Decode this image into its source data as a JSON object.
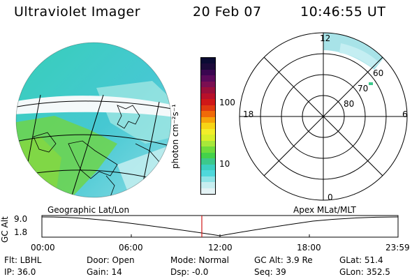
{
  "header": {
    "instrument": "Ultraviolet Imager",
    "date": "20 Feb 07",
    "time": "10:46:55 UT"
  },
  "colorbar": {
    "label": "photon cm⁻²s⁻¹",
    "ticks": [
      "100",
      "10"
    ],
    "colors": [
      "#0b0b33",
      "#1c0a3a",
      "#3a0650",
      "#5a0a5a",
      "#7b0f52",
      "#9a0f3a",
      "#b8102a",
      "#d01818",
      "#e03a10",
      "#f06a08",
      "#f6a40a",
      "#f7d415",
      "#f2ee2a",
      "#d8ef2a",
      "#a7e83a",
      "#6fdc3c",
      "#44d24a",
      "#3cc88b",
      "#3ccfc0",
      "#4fd8db",
      "#8fe3e6",
      "#c7eef0",
      "#e4f3f5"
    ]
  },
  "polar_plot": {
    "mlt_labels": {
      "top": "12",
      "left": "18",
      "right": "6",
      "bottom": "0"
    },
    "mlat_labels": [
      "60",
      "70",
      "80"
    ]
  },
  "timeline": {
    "left_label": "Geographic Lat/Lon",
    "right_label": "Apex MLat/MLT",
    "axis_title": "GC Alt",
    "y_ticks": [
      "9.0",
      "1.8"
    ],
    "x_ticks": [
      "00:00",
      "06:00",
      "12:00",
      "18:00",
      "23:59"
    ],
    "current_time": "10:46:55"
  },
  "info": {
    "flt": "Flt: LBHL",
    "ip": "IP: 36.0",
    "door": "Door: Open",
    "gain": "Gain: 14",
    "mode": "Mode: Normal",
    "dsp": "Dsp:    -0.0",
    "gc_alt": "GC Alt: 3.9 Re",
    "seq": "Seq: 39",
    "glat": "GLat: 51.4",
    "glon": "GLon: 352.5"
  }
}
